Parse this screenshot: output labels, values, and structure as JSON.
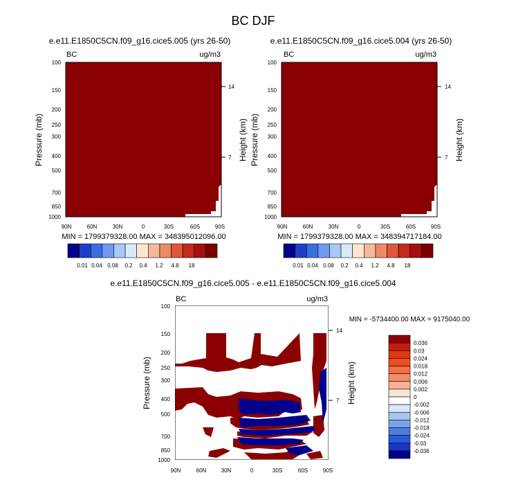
{
  "chart_data": {
    "type": "heatmap",
    "title": "BC DJF",
    "panels": [
      {
        "id": "p1",
        "title": "e.e11.E1850C5CN.f09_g16.cice5.005 (yrs 26-50)",
        "left_label": "BC",
        "units": "ug/m3",
        "ylabel": "Pressure (mb)",
        "y2label": "Height (km)",
        "xticks": [
          "90N",
          "60N",
          "30N",
          "0",
          "30S",
          "60S",
          "90S"
        ],
        "yticks": [
          "100",
          "150",
          "200",
          "250",
          "300",
          "400",
          "500",
          "700",
          "850",
          "1000"
        ],
        "y2ticks": [
          "14",
          "7"
        ],
        "stats": "MIN = 1799379328.00  MAX = 348395012096.00",
        "colorbar_labels": [
          "0.01",
          "0.04",
          "0.08",
          "0.2",
          "0.4",
          "1.2",
          "4.8",
          "18"
        ],
        "colorbar_colors": [
          "#00008b",
          "#1e40c8",
          "#3a6fe0",
          "#6f9af0",
          "#a8c8f8",
          "#dbeafb",
          "#fde6d2",
          "#f6b89a",
          "#ee8a64",
          "#e0573a",
          "#c42a1a",
          "#a50f0f",
          "#7a0000"
        ]
      },
      {
        "id": "p2",
        "title": "e.e11.E1850C5CN.f09_g16.cice5.004 (yrs 26-50)",
        "left_label": "BC",
        "units": "ug/m3",
        "ylabel": "Pressure (mb)",
        "y2label": "Height (km)",
        "xticks": [
          "90N",
          "60N",
          "30N",
          "0",
          "30S",
          "60S",
          "90S"
        ],
        "yticks": [
          "100",
          "150",
          "200",
          "250",
          "300",
          "400",
          "500",
          "700",
          "850",
          "1000"
        ],
        "y2ticks": [
          "14",
          "7"
        ],
        "stats": "MIN = 1799379328.00  MAX = 348394717184.00",
        "colorbar_labels": [
          "0.01",
          "0.04",
          "0.08",
          "0.2",
          "0.4",
          "1.2",
          "4.8",
          "18"
        ],
        "colorbar_colors": [
          "#00008b",
          "#1e40c8",
          "#3a6fe0",
          "#6f9af0",
          "#a8c8f8",
          "#dbeafb",
          "#fde6d2",
          "#f6b89a",
          "#ee8a64",
          "#e0573a",
          "#c42a1a",
          "#a50f0f",
          "#7a0000"
        ]
      },
      {
        "id": "p3",
        "title": "e.e11.E1850C5CN.f09_g16.cice5.005 - e.e11.E1850C5CN.f09_g16.cice5.004",
        "left_label": "BC",
        "units": "ug/m3",
        "ylabel": "Pressure (mb)",
        "y2label": "Height (km)",
        "xticks": [
          "90N",
          "60N",
          "30N",
          "0",
          "30S",
          "60S",
          "90S"
        ],
        "yticks": [
          "100",
          "150",
          "200",
          "250",
          "300",
          "400",
          "500",
          "700",
          "850",
          "1000"
        ],
        "y2ticks": [
          "14",
          "7"
        ],
        "stats": "MIN = -5734400.00  MAX = 9175040.00",
        "colorbar_labels": [
          "0.036",
          "0.03",
          "0.024",
          "0.018",
          "0.012",
          "0.006",
          "0.002",
          "0",
          "-0.002",
          "-0.006",
          "-0.012",
          "-0.018",
          "-0.024",
          "-0.03",
          "-0.036"
        ],
        "colorbar_colors": [
          "#8b0000",
          "#c81c0a",
          "#e03a10",
          "#f04e1e",
          "#f46e46",
          "#f68c68",
          "#f8b094",
          "#fde4d2",
          "#ffffff",
          "#d9e8fa",
          "#a8c6f0",
          "#7aa6e8",
          "#4a7ee0",
          "#2a5ad8",
          "#1a38c8",
          "#00008b"
        ]
      }
    ]
  }
}
